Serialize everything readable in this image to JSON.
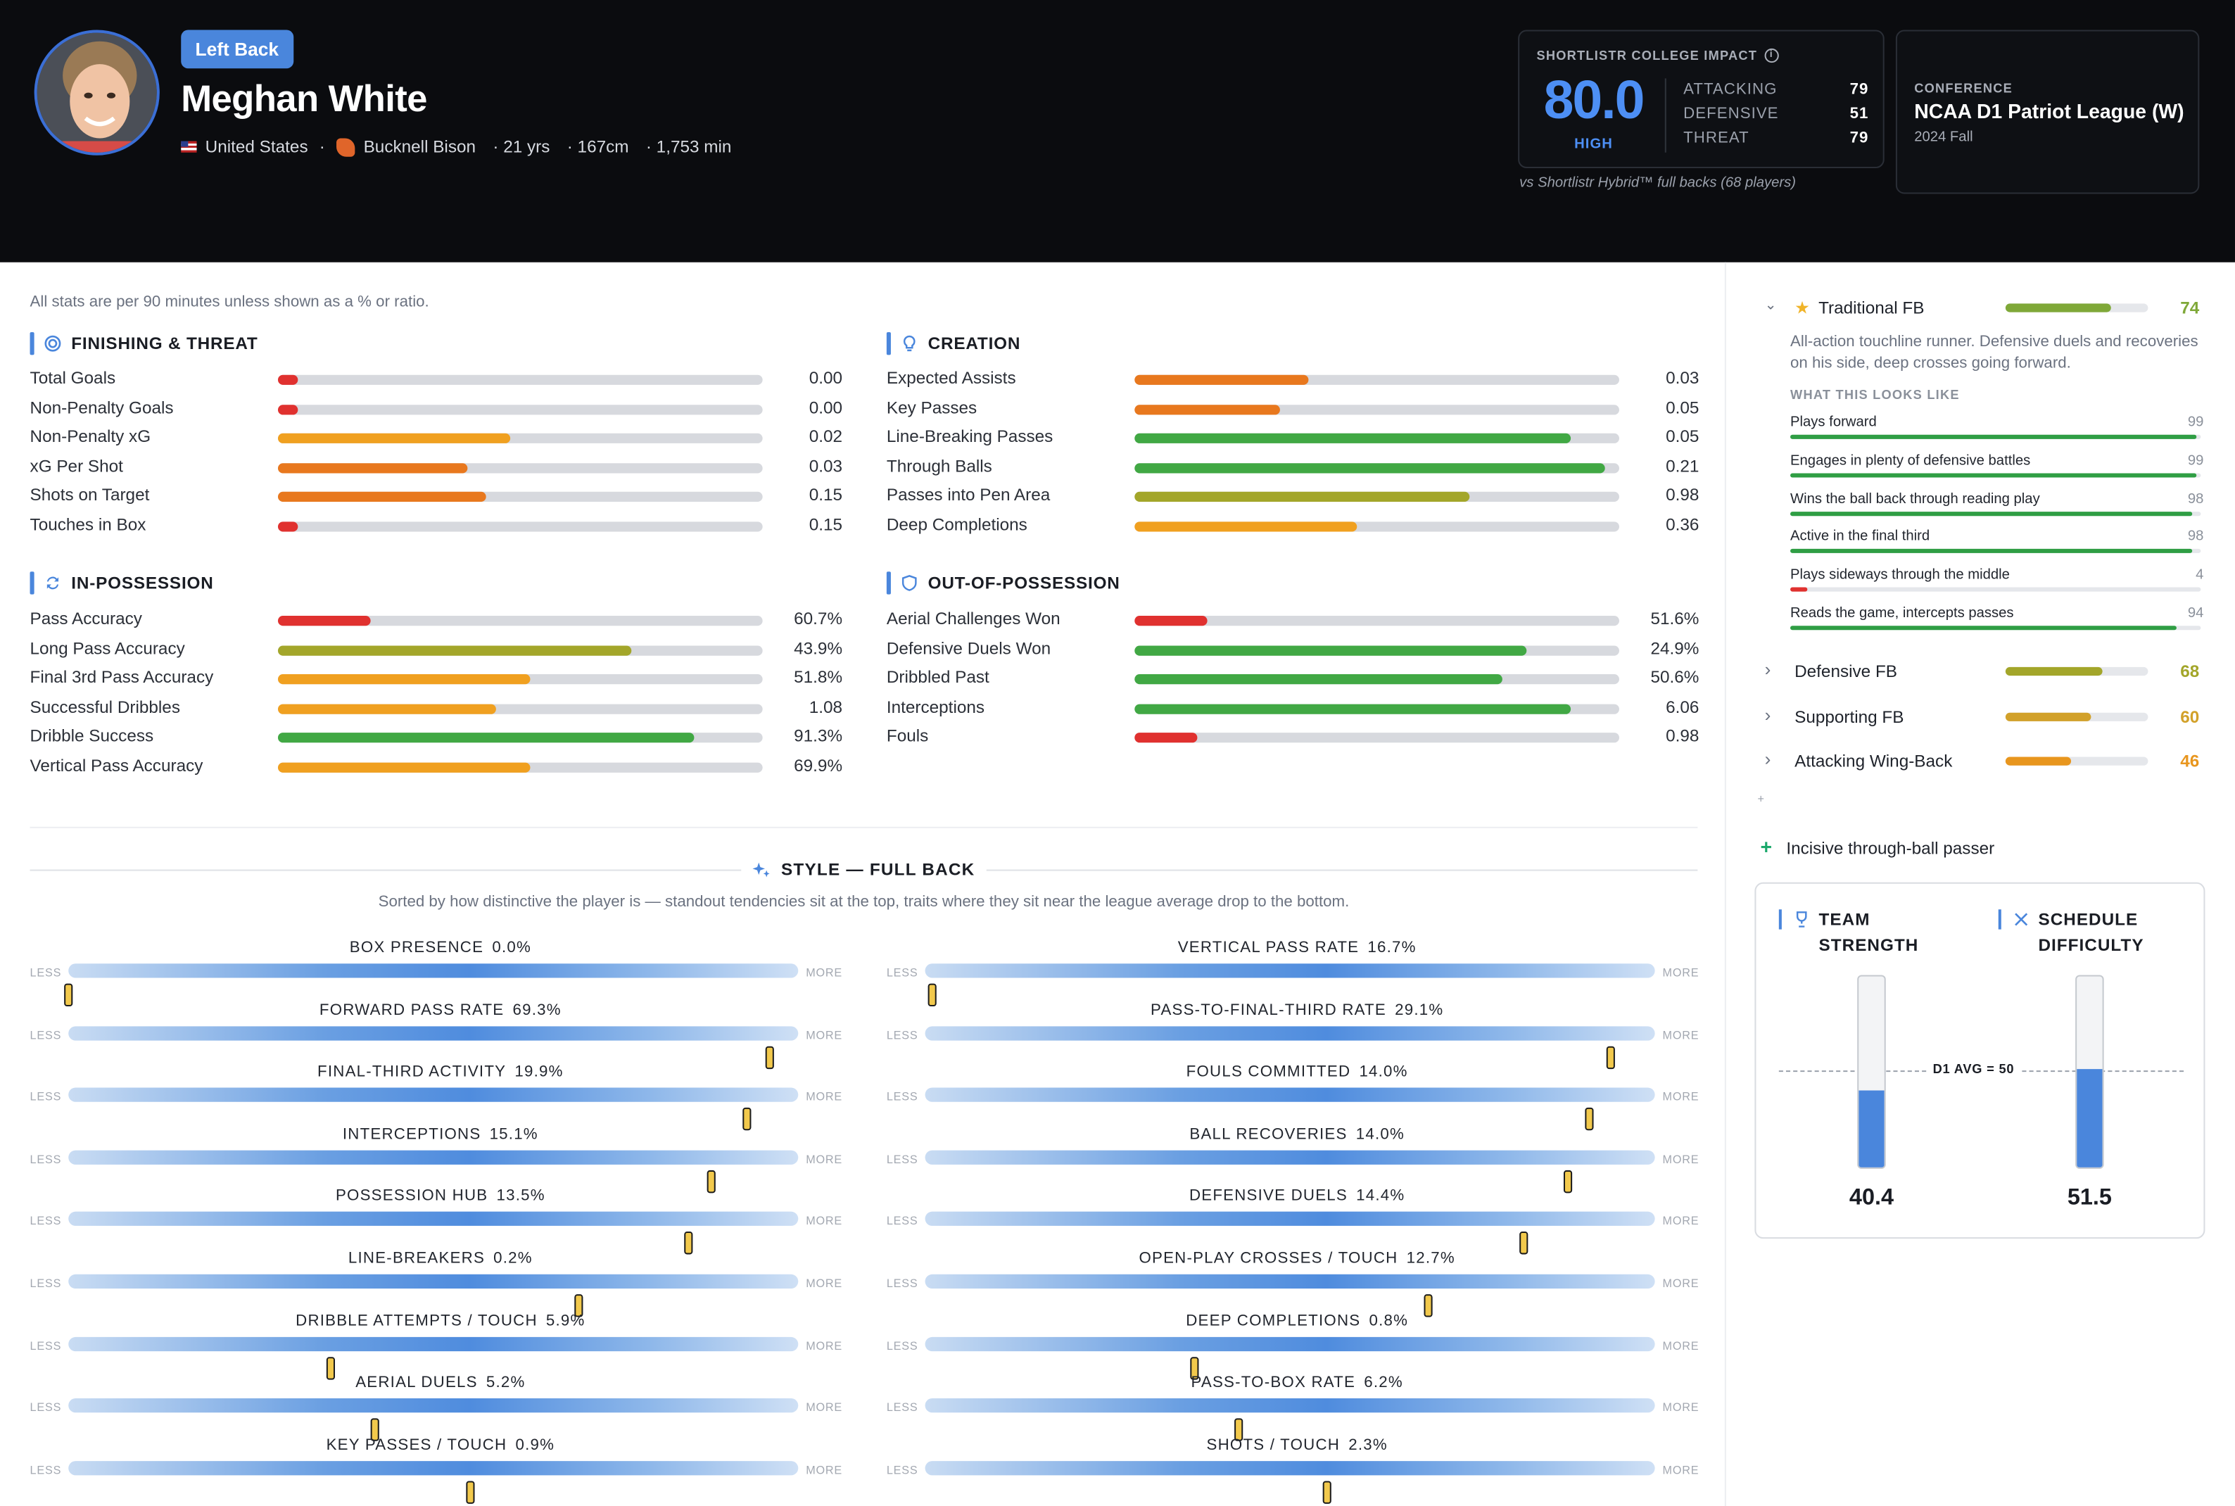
{
  "player": {
    "position": "Left Back",
    "name": "Meghan White",
    "country": "United States",
    "club": "Bucknell Bison",
    "age": "· 21 yrs",
    "height": "· 167cm",
    "minutes": "· 1,753 min"
  },
  "impact": {
    "title": "SHORTLISTR COLLEGE IMPACT",
    "score": "80.0",
    "level": "HIGH",
    "attacking_label": "ATTACKING",
    "attacking": "79",
    "defensive_label": "DEFENSIVE",
    "defensive": "51",
    "threat_label": "THREAT",
    "threat": "79",
    "note": "vs Shortlistr Hybrid™ full backs (68 players)"
  },
  "conference": {
    "label": "CONFERENCE",
    "name": "NCAA D1 Patriot League (W)",
    "season": "2024 Fall"
  },
  "stats_note": "All stats are per 90 minutes unless shown as a % or ratio.",
  "colors": {
    "red": "#e0312f",
    "orange": "#e8781e",
    "amber": "#f0a020",
    "olive": "#a3a62a",
    "green": "#41a844",
    "accent": "#4a86dc"
  },
  "sections": [
    {
      "title": "FINISHING & THREAT",
      "icon": "target-icon",
      "rows": [
        {
          "label": "Total Goals",
          "value": "0.00",
          "pct": 4,
          "color": "red"
        },
        {
          "label": "Non-Penalty Goals",
          "value": "0.00",
          "pct": 4,
          "color": "red"
        },
        {
          "label": "Non-Penalty xG",
          "value": "0.02",
          "pct": 48,
          "color": "amber"
        },
        {
          "label": "xG Per Shot",
          "value": "0.03",
          "pct": 39,
          "color": "orange"
        },
        {
          "label": "Shots on Target",
          "value": "0.15",
          "pct": 43,
          "color": "orange"
        },
        {
          "label": "Touches in Box",
          "value": "0.15",
          "pct": 4,
          "color": "red"
        }
      ]
    },
    {
      "title": "CREATION",
      "icon": "lightbulb-icon",
      "rows": [
        {
          "label": "Expected Assists",
          "value": "0.03",
          "pct": 36,
          "color": "orange"
        },
        {
          "label": "Key Passes",
          "value": "0.05",
          "pct": 30,
          "color": "orange"
        },
        {
          "label": "Line-Breaking Passes",
          "value": "0.05",
          "pct": 90,
          "color": "green"
        },
        {
          "label": "Through Balls",
          "value": "0.21",
          "pct": 97,
          "color": "green"
        },
        {
          "label": "Passes into Pen Area",
          "value": "0.98",
          "pct": 69,
          "color": "olive"
        },
        {
          "label": "Deep Completions",
          "value": "0.36",
          "pct": 46,
          "color": "amber"
        }
      ]
    },
    {
      "title": "IN-POSSESSION",
      "icon": "swap-icon",
      "rows": [
        {
          "label": "Pass Accuracy",
          "value": "60.7%",
          "pct": 19,
          "color": "red"
        },
        {
          "label": "Long Pass Accuracy",
          "value": "43.9%",
          "pct": 73,
          "color": "olive"
        },
        {
          "label": "Final 3rd Pass Accuracy",
          "value": "51.8%",
          "pct": 52,
          "color": "amber"
        },
        {
          "label": "Successful Dribbles",
          "value": "1.08",
          "pct": 45,
          "color": "amber"
        },
        {
          "label": "Dribble Success",
          "value": "91.3%",
          "pct": 86,
          "color": "green"
        },
        {
          "label": "Vertical Pass Accuracy",
          "value": "69.9%",
          "pct": 52,
          "color": "amber"
        }
      ]
    },
    {
      "title": "OUT-OF-POSSESSION",
      "icon": "shield-icon",
      "rows": [
        {
          "label": "Aerial Challenges Won",
          "value": "51.6%",
          "pct": 15,
          "color": "red"
        },
        {
          "label": "Defensive Duels Won",
          "value": "24.9%",
          "pct": 81,
          "color": "green"
        },
        {
          "label": "Dribbled Past",
          "value": "50.6%",
          "pct": 76,
          "color": "green"
        },
        {
          "label": "Interceptions",
          "value": "6.06",
          "pct": 90,
          "color": "green"
        },
        {
          "label": "Fouls",
          "value": "0.98",
          "pct": 13,
          "color": "red"
        }
      ]
    }
  ],
  "style": {
    "title": "STYLE — FULL BACK",
    "subtitle": "Sorted by how distinctive the player is — standout tendencies sit at the top, traits where they sit near the league average drop to the bottom.",
    "less": "LESS",
    "more": "MORE",
    "left": [
      {
        "label": "BOX PRESENCE",
        "value": "0.0%",
        "pos": 0
      },
      {
        "label": "FORWARD PASS RATE",
        "value": "69.3%",
        "pos": 96
      },
      {
        "label": "FINAL-THIRD ACTIVITY",
        "value": "19.9%",
        "pos": 93
      },
      {
        "label": "INTERCEPTIONS",
        "value": "15.1%",
        "pos": 88
      },
      {
        "label": "POSSESSION HUB",
        "value": "13.5%",
        "pos": 85
      },
      {
        "label": "LINE-BREAKERS",
        "value": "0.2%",
        "pos": 70
      },
      {
        "label": "DRIBBLE ATTEMPTS / TOUCH",
        "value": "5.9%",
        "pos": 36
      },
      {
        "label": "AERIAL DUELS",
        "value": "5.2%",
        "pos": 42
      },
      {
        "label": "KEY PASSES / TOUCH",
        "value": "0.9%",
        "pos": 55
      }
    ],
    "right": [
      {
        "label": "VERTICAL PASS RATE",
        "value": "16.7%",
        "pos": 1
      },
      {
        "label": "PASS-TO-FINAL-THIRD RATE",
        "value": "29.1%",
        "pos": 94
      },
      {
        "label": "FOULS COMMITTED",
        "value": "14.0%",
        "pos": 91
      },
      {
        "label": "BALL RECOVERIES",
        "value": "14.0%",
        "pos": 88
      },
      {
        "label": "DEFENSIVE DUELS",
        "value": "14.4%",
        "pos": 82
      },
      {
        "label": "OPEN-PLAY CROSSES / TOUCH",
        "value": "12.7%",
        "pos": 69
      },
      {
        "label": "DEEP COMPLETIONS",
        "value": "0.8%",
        "pos": 37
      },
      {
        "label": "PASS-TO-BOX RATE",
        "value": "6.2%",
        "pos": 43
      },
      {
        "label": "SHOTS / TOUCH",
        "value": "2.3%",
        "pos": 55
      }
    ]
  },
  "roles": {
    "primary": {
      "name": "Traditional FB",
      "score": "74",
      "pct": 74,
      "color": "#7fa838",
      "description": "All-action touchline runner. Defensive duels and recoveries on his side, deep crosses going forward.",
      "looks_like": "WHAT THIS LOOKS LIKE",
      "traits": [
        {
          "label": "Plays forward",
          "value": "99",
          "pct": 99,
          "color": "#2f9e44"
        },
        {
          "label": "Engages in plenty of defensive battles",
          "value": "99",
          "pct": 99,
          "color": "#2f9e44"
        },
        {
          "label": "Wins the ball back through reading play",
          "value": "98",
          "pct": 98,
          "color": "#2f9e44"
        },
        {
          "label": "Active in the final third",
          "value": "98",
          "pct": 98,
          "color": "#2f9e44"
        },
        {
          "label": "Plays sideways through the middle",
          "value": "4",
          "pct": 4,
          "color": "#e0312f"
        },
        {
          "label": "Reads the game, intercepts passes",
          "value": "94",
          "pct": 94,
          "color": "#2f9e44"
        }
      ]
    },
    "others": [
      {
        "name": "Defensive FB",
        "score": "68",
        "pct": 68,
        "color": "#a3a62a"
      },
      {
        "name": "Supporting FB",
        "score": "60",
        "pct": 60,
        "color": "#d2a12a"
      },
      {
        "name": "Attacking Wing-Back",
        "score": "46",
        "pct": 46,
        "color": "#e8961e"
      }
    ],
    "trait_tag": "Incisive through-ball passer"
  },
  "context": {
    "team_strength_label": "TEAM STRENGTH",
    "schedule_label": "SCHEDULE DIFFICULTY",
    "avg_label": "D1 AVG = 50",
    "team_strength": "40.4",
    "team_strength_num": 40.4,
    "schedule": "51.5",
    "schedule_num": 51.5
  }
}
